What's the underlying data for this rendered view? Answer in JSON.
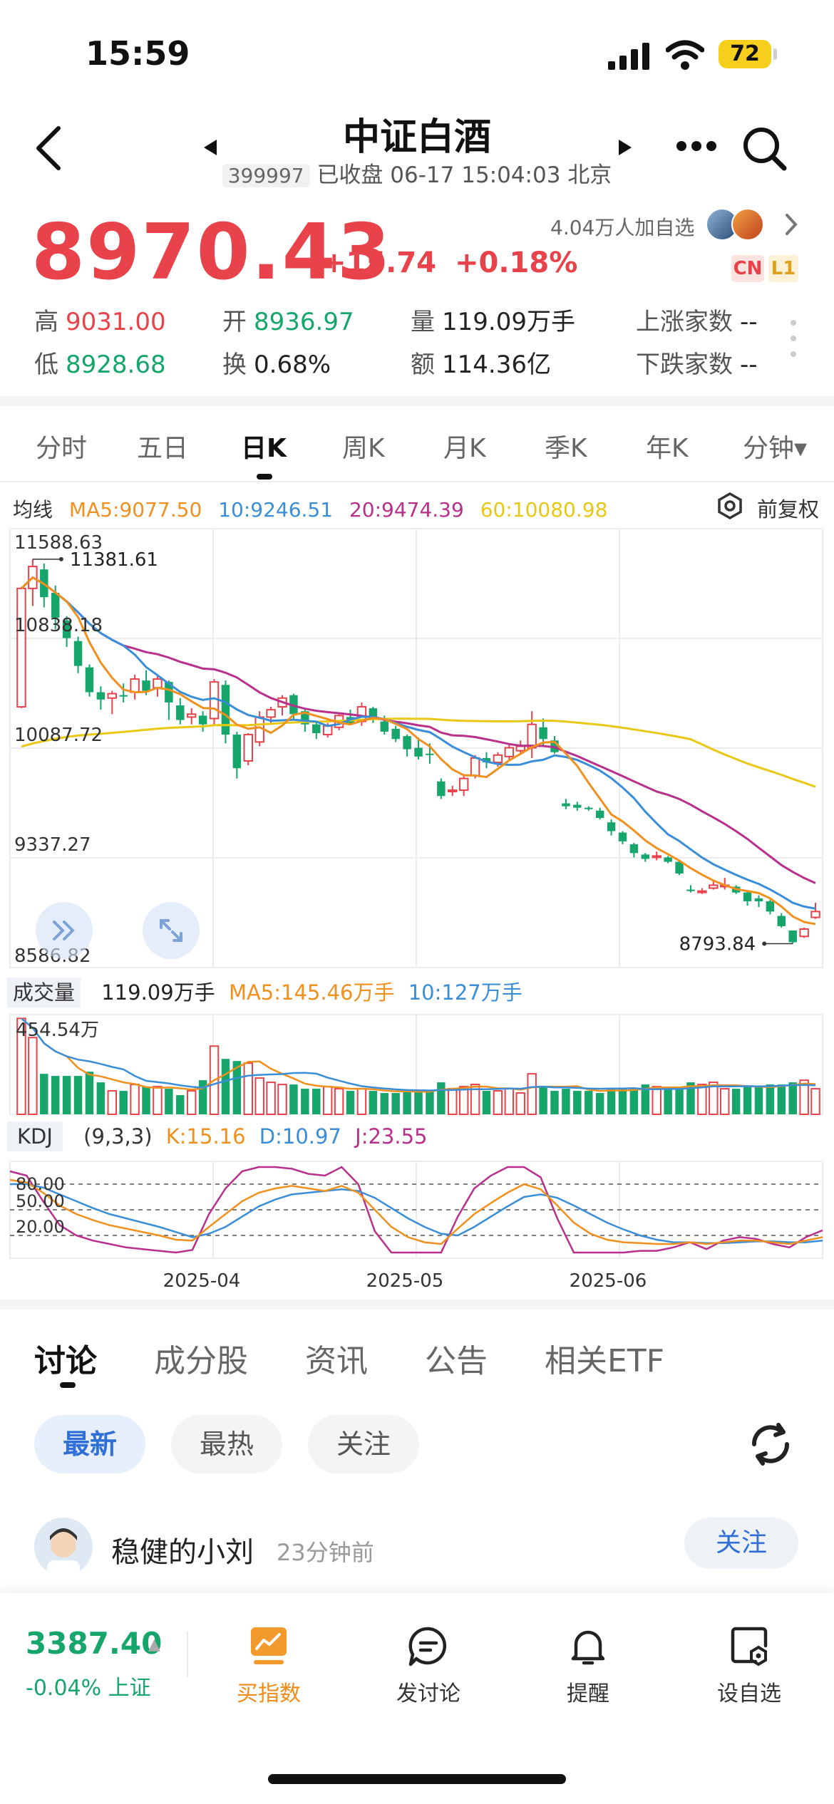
{
  "status_bar": {
    "time": "15:59",
    "battery": "72"
  },
  "header": {
    "title": "中证白酒",
    "code": "399997",
    "status": "已收盘 06-17 15:04:03 北京"
  },
  "quote": {
    "price": "8970.43",
    "change": "+15.74",
    "change_pct": "+0.18%",
    "watchers": "4.04万人加自选",
    "tags": [
      "CN",
      "L1"
    ],
    "stats": {
      "high_label": "高",
      "high": "9031.00",
      "open_label": "开",
      "open": "8936.97",
      "vol_label": "量",
      "vol": "119.09万手",
      "up_label": "上涨家数",
      "up": "--",
      "low_label": "低",
      "low": "8928.68",
      "turn_label": "换",
      "turn": "0.68%",
      "amt_label": "额",
      "amt": "114.36亿",
      "down_label": "下跌家数",
      "down": "--"
    }
  },
  "period_tabs": [
    "分时",
    "五日",
    "日K",
    "周K",
    "月K",
    "季K",
    "年K",
    "分钟▾"
  ],
  "ma_row": {
    "label": "均线",
    "ma5": "MA5:9077.50",
    "ma10": "10:9246.51",
    "ma20": "20:9474.39",
    "ma60": "60:10080.98",
    "adjust": "前复权"
  },
  "chart_data": {
    "type": "candlestick",
    "price_axis_labels": [
      "11588.63",
      "10838.18",
      "10087.72",
      "9337.27",
      "8586.82"
    ],
    "ylim": [
      8586.82,
      11588.63
    ],
    "max_marker": "11381.61",
    "min_marker": "8793.84",
    "x_labels": [
      "2025-04",
      "2025-05",
      "2025-06"
    ],
    "candles": [
      [
        10370,
        11180,
        10360,
        11190
      ],
      [
        11180,
        11330,
        11060,
        11380
      ],
      [
        11310,
        11120,
        11050,
        11350
      ],
      [
        11150,
        10980,
        10900,
        11200
      ],
      [
        10960,
        10840,
        10780,
        10990
      ],
      [
        10820,
        10650,
        10600,
        10850
      ],
      [
        10640,
        10470,
        10440,
        10660
      ],
      [
        10470,
        10420,
        10350,
        10510
      ],
      [
        10430,
        10460,
        10320,
        10480
      ],
      [
        10450,
        10440,
        10400,
        10530
      ],
      [
        10470,
        10560,
        10420,
        10590
      ],
      [
        10550,
        10480,
        10450,
        10620
      ],
      [
        10500,
        10560,
        10440,
        10580
      ],
      [
        10540,
        10400,
        10280,
        10550
      ],
      [
        10380,
        10280,
        10250,
        10430
      ],
      [
        10300,
        10320,
        10250,
        10360
      ],
      [
        10310,
        10250,
        10200,
        10340
      ],
      [
        10290,
        10540,
        10240,
        10560
      ],
      [
        10520,
        10180,
        10120,
        10550
      ],
      [
        10180,
        9950,
        9880,
        10200
      ],
      [
        10000,
        10180,
        9970,
        10190
      ],
      [
        10130,
        10300,
        10100,
        10340
      ],
      [
        10300,
        10350,
        10250,
        10370
      ],
      [
        10370,
        10430,
        10310,
        10450
      ],
      [
        10450,
        10320,
        10280,
        10460
      ],
      [
        10340,
        10250,
        10200,
        10350
      ],
      [
        10250,
        10190,
        10150,
        10270
      ],
      [
        10180,
        10240,
        10160,
        10260
      ],
      [
        10230,
        10310,
        10210,
        10330
      ],
      [
        10300,
        10260,
        10250,
        10350
      ],
      [
        10270,
        10370,
        10240,
        10400
      ],
      [
        10360,
        10290,
        10260,
        10370
      ],
      [
        10270,
        10200,
        10180,
        10310
      ],
      [
        10220,
        10150,
        10130,
        10240
      ],
      [
        10170,
        10080,
        10030,
        10180
      ],
      [
        10090,
        10030,
        10010,
        10160
      ],
      [
        10050,
        10040,
        9980,
        10120
      ],
      [
        9860,
        9760,
        9740,
        9880
      ],
      [
        9800,
        9800,
        9760,
        9830
      ],
      [
        9800,
        9880,
        9760,
        9900
      ],
      [
        9900,
        10020,
        9880,
        10040
      ],
      [
        10020,
        9990,
        9950,
        10060
      ],
      [
        9990,
        10040,
        9960,
        10060
      ],
      [
        10030,
        10090,
        10010,
        10120
      ],
      [
        10070,
        10100,
        10050,
        10140
      ],
      [
        10090,
        10250,
        10020,
        10340
      ],
      [
        10230,
        10150,
        10100,
        10290
      ],
      [
        10140,
        10060,
        10050,
        10170
      ],
      [
        9710,
        9690,
        9670,
        9740
      ],
      [
        9700,
        9680,
        9660,
        9720
      ],
      [
        9680,
        9670,
        9660,
        9690
      ],
      [
        9660,
        9610,
        9600,
        9680
      ],
      [
        9580,
        9520,
        9490,
        9600
      ],
      [
        9510,
        9450,
        9430,
        9520
      ],
      [
        9430,
        9370,
        9340,
        9440
      ],
      [
        9360,
        9330,
        9310,
        9370
      ],
      [
        9350,
        9350,
        9320,
        9380
      ],
      [
        9340,
        9310,
        9300,
        9350
      ],
      [
        9310,
        9230,
        9220,
        9320
      ],
      [
        9120,
        9110,
        9100,
        9150
      ],
      [
        9110,
        9110,
        9090,
        9130
      ],
      [
        9130,
        9150,
        9120,
        9180
      ],
      [
        9140,
        9150,
        9120,
        9200
      ],
      [
        9140,
        9100,
        9090,
        9150
      ],
      [
        9100,
        9040,
        9010,
        9110
      ],
      [
        9060,
        9040,
        9000,
        9080
      ],
      [
        9040,
        8970,
        8950,
        9050
      ],
      [
        8940,
        8870,
        8860,
        8960
      ],
      [
        8840,
        8760,
        8750,
        8840
      ],
      [
        8800,
        8850,
        8790,
        8860
      ],
      [
        8930,
        8970,
        8920,
        9030
      ]
    ],
    "volume": {
      "label": "成交量",
      "value": "119.09万手",
      "ma5": "MA5:145.46万手",
      "ma10": "10:127万手",
      "axis_max_label": "454.54万",
      "values": [
        450,
        360,
        190,
        180,
        180,
        180,
        200,
        150,
        110,
        110,
        140,
        130,
        130,
        120,
        90,
        110,
        160,
        320,
        260,
        250,
        240,
        170,
        150,
        140,
        140,
        120,
        120,
        130,
        120,
        110,
        120,
        110,
        100,
        100,
        110,
        110,
        110,
        150,
        120,
        130,
        140,
        110,
        110,
        120,
        100,
        190,
        130,
        110,
        120,
        110,
        110,
        100,
        120,
        120,
        120,
        140,
        130,
        120,
        120,
        150,
        140,
        150,
        120,
        120,
        130,
        130,
        140,
        140,
        150,
        160,
        120
      ]
    },
    "kdj": {
      "label": "KDJ",
      "params": "(9,3,3)",
      "k": "K:15.16",
      "d": "D:10.97",
      "j": "J:23.55",
      "levels": [
        "80.00",
        "50.00",
        "20.00"
      ],
      "K": [
        85,
        82,
        70,
        55,
        45,
        38,
        32,
        28,
        24,
        20,
        15,
        14,
        30,
        45,
        60,
        70,
        75,
        78,
        75,
        72,
        78,
        70,
        50,
        30,
        18,
        12,
        10,
        28,
        45,
        58,
        70,
        80,
        74,
        55,
        35,
        22,
        15,
        12,
        11,
        10,
        10,
        12,
        10,
        12,
        14,
        14,
        12,
        10,
        14,
        18
      ],
      "D": [
        80,
        80,
        76,
        68,
        60,
        52,
        45,
        40,
        35,
        30,
        24,
        18,
        22,
        30,
        42,
        54,
        62,
        68,
        70,
        72,
        74,
        72,
        64,
        52,
        40,
        30,
        22,
        20,
        30,
        42,
        54,
        65,
        68,
        64,
        55,
        45,
        35,
        27,
        20,
        15,
        12,
        12,
        11,
        11,
        12,
        13,
        13,
        12,
        12,
        14
      ],
      "J": [
        95,
        90,
        60,
        32,
        20,
        14,
        10,
        6,
        4,
        2,
        0,
        3,
        45,
        75,
        95,
        100,
        100,
        98,
        92,
        90,
        100,
        80,
        25,
        0,
        0,
        0,
        0,
        42,
        75,
        90,
        100,
        100,
        88,
        40,
        0,
        0,
        0,
        0,
        2,
        2,
        6,
        12,
        4,
        14,
        18,
        16,
        10,
        6,
        18,
        26
      ]
    },
    "ma_colors": {
      "ma5": "#f0901e",
      "ma10": "#3a8ed8",
      "ma20": "#b8308c",
      "ma60": "#e8c814"
    }
  },
  "discussion": {
    "tabs": [
      "讨论",
      "成分股",
      "资讯",
      "公告",
      "相关ETF"
    ],
    "filters": [
      "最新",
      "最热",
      "关注"
    ],
    "post": {
      "user": "稳健的小刘",
      "time": "23分钟前",
      "follow": "关注"
    }
  },
  "bottom": {
    "index_value": "3387.40",
    "index_change": "-0.04%",
    "index_name": "上证",
    "nav": [
      "买指数",
      "发讨论",
      "提醒",
      "设自选"
    ]
  }
}
